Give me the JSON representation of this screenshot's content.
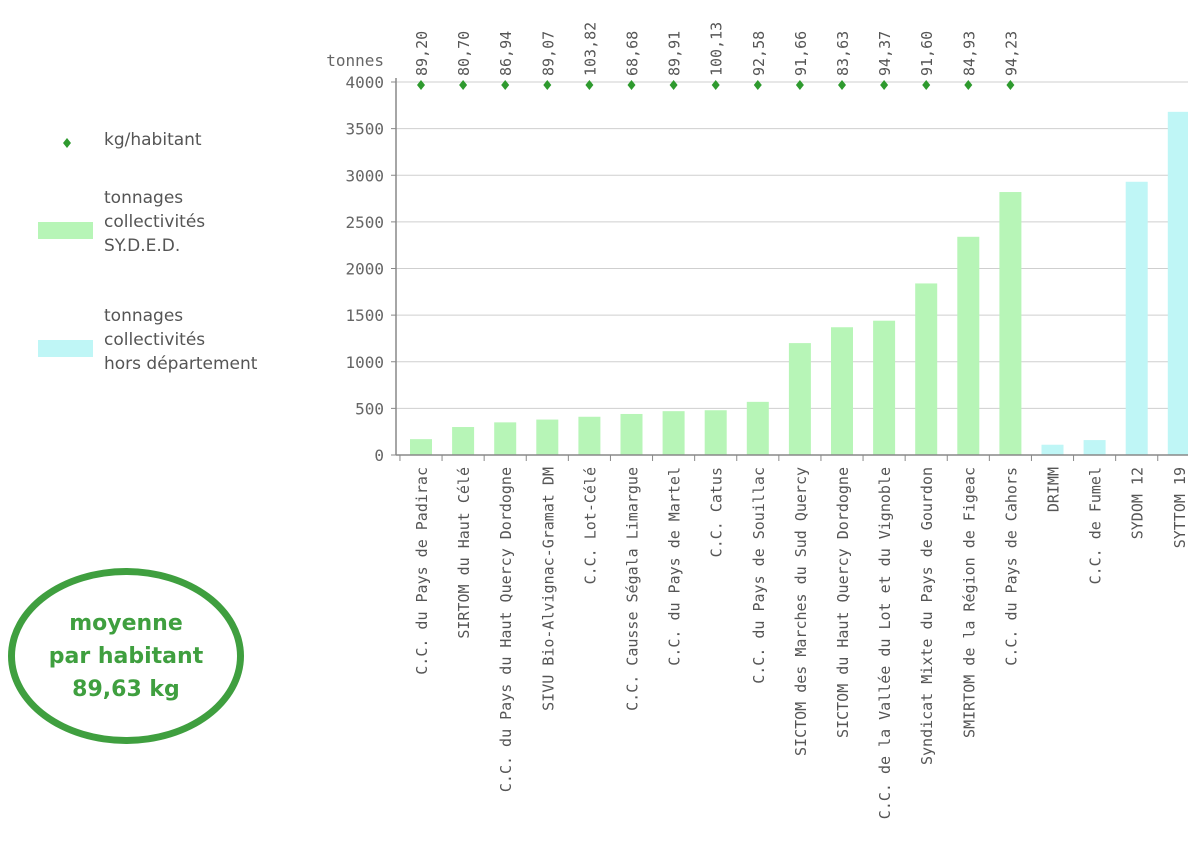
{
  "legend": {
    "kg_label": "kg/habitant",
    "syded_label": [
      "tonnages",
      "collectivités",
      "SY.D.E.D."
    ],
    "hors_label": [
      "tonnages",
      "collectivités",
      "hors département"
    ]
  },
  "badge": {
    "line1": "moyenne",
    "line2": "par habitant",
    "line3": "89,63 kg"
  },
  "colors": {
    "syded": "#b7f5b7",
    "hors": "#bff6f6",
    "marker": "#2e9a2e",
    "grid": "#cfcfcf"
  },
  "chart_data": {
    "type": "bar",
    "ylabel": "tonnes",
    "ylim": [
      0,
      4000
    ],
    "yticks": [
      0,
      500,
      1000,
      1500,
      2000,
      2500,
      3000,
      3500,
      4000
    ],
    "categories": [
      "C.C. du Pays de Padirac",
      "SIRTOM du Haut Célé",
      "C.C. du Pays du Haut Quercy Dordogne",
      "SIVU Bio-Alvignac-Gramat DM",
      "C.C. Lot-Célé",
      "C.C. Causse Ségala Limargue",
      "C.C. du Pays de Martel",
      "C.C. Catus",
      "C.C. du Pays de Souillac",
      "SICTOM des Marches du Sud Quercy",
      "SICTOM du Haut Quercy Dordogne",
      "C.C. de la Vallée du Lot et du Vignoble",
      "Syndicat Mixte du Pays de Gourdon",
      "SMIRTOM de la Région de Figeac",
      "C.C. du Pays de Cahors",
      "DRIMM",
      "C.C. de Fumel",
      "SYDOM 12",
      "SYTTOM 19"
    ],
    "series": [
      {
        "name": "tonnages collectivités SY.D.E.D.",
        "values": [
          170,
          300,
          350,
          380,
          410,
          440,
          470,
          480,
          570,
          1200,
          1370,
          1440,
          1840,
          2340,
          2820,
          null,
          null,
          null,
          null
        ]
      },
      {
        "name": "tonnages collectivités hors département",
        "values": [
          null,
          null,
          null,
          null,
          null,
          null,
          null,
          null,
          null,
          null,
          null,
          null,
          null,
          null,
          null,
          110,
          160,
          2930,
          3680
        ]
      }
    ],
    "kg_per_habitant": [
      "89,20",
      "80,70",
      "86,94",
      "89,07",
      "103,82",
      "68,68",
      "89,91",
      "100,13",
      "92,58",
      "91,66",
      "83,63",
      "94,37",
      "91,60",
      "84,93",
      "94,23"
    ]
  }
}
